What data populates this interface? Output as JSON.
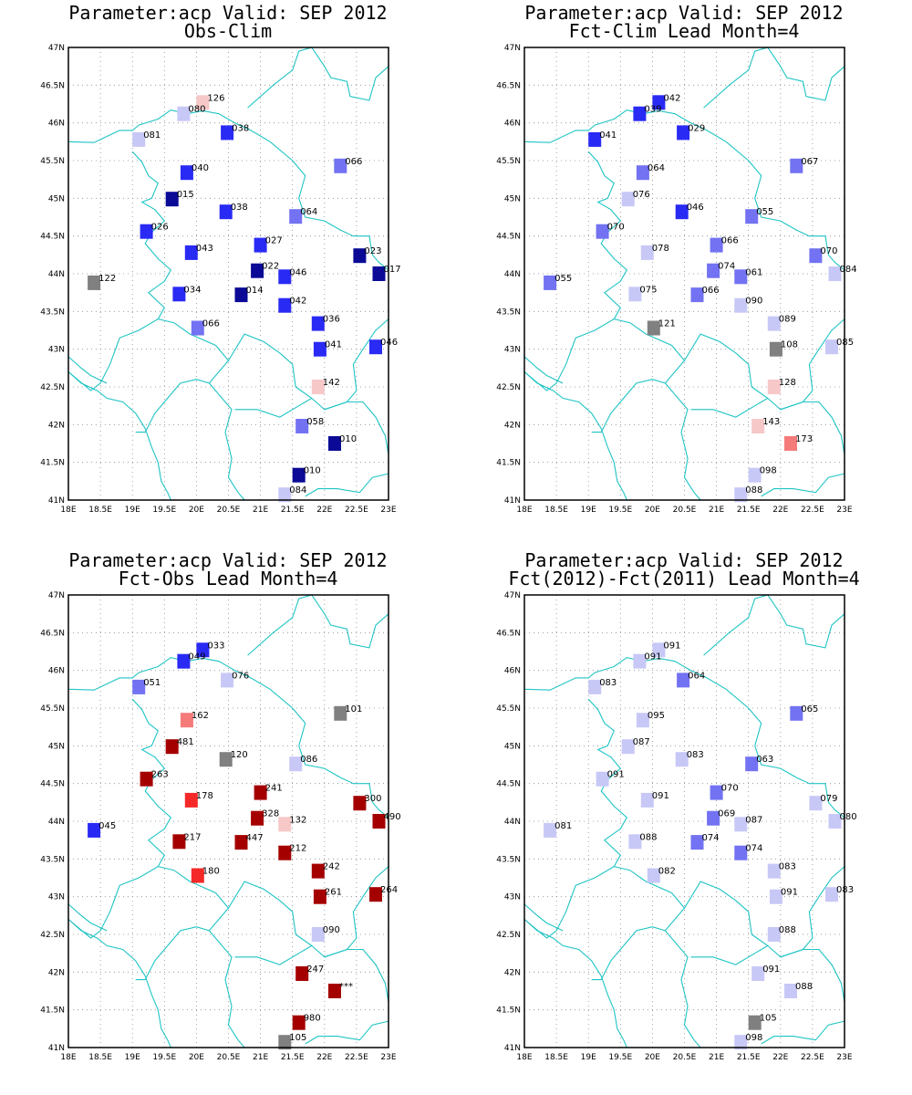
{
  "colors": {
    "border": "#1fc4c4",
    "bins": {
      "navy": "#0a0a96",
      "blue": "#2a2af5",
      "medblue": "#7272f2",
      "lightblue": "#c8c8f7",
      "gray": "#808080",
      "pink": "#f7c8c8",
      "salmon": "#f57a7a",
      "red": "#f52828",
      "darkred": "#a50000"
    }
  },
  "axes": {
    "lon": {
      "min": 18,
      "max": 23,
      "ticks": [
        18,
        18.5,
        19,
        19.5,
        20,
        20.5,
        21,
        21.5,
        22,
        22.5,
        23
      ],
      "labels": [
        "18E",
        "18.5E",
        "19E",
        "19.5E",
        "20E",
        "20.5E",
        "21E",
        "21.5E",
        "22E",
        "22.5E",
        "23E"
      ]
    },
    "lat": {
      "min": 41,
      "max": 47,
      "ticks": [
        41,
        41.5,
        42,
        42.5,
        43,
        43.5,
        44,
        44.5,
        45,
        45.5,
        46,
        46.5,
        47
      ],
      "labels": [
        "41N",
        "41.5N",
        "42N",
        "42.5N",
        "43N",
        "43.5N",
        "44N",
        "44.5N",
        "45N",
        "45.5N",
        "46N",
        "46.5N",
        "47N"
      ]
    }
  },
  "panels": [
    {
      "title1": "Parameter:acp Valid: SEP 2012",
      "title2": "Obs-Clim",
      "stations": [
        {
          "lon": 20.1,
          "lat": 46.27,
          "label": "126",
          "bin": "pink"
        },
        {
          "lon": 19.8,
          "lat": 46.12,
          "label": "080",
          "bin": "lightblue"
        },
        {
          "lon": 19.1,
          "lat": 45.78,
          "label": "081",
          "bin": "lightblue"
        },
        {
          "lon": 20.48,
          "lat": 45.87,
          "label": "038",
          "bin": "blue"
        },
        {
          "lon": 22.25,
          "lat": 45.43,
          "label": "066",
          "bin": "medblue"
        },
        {
          "lon": 19.85,
          "lat": 45.34,
          "label": "040",
          "bin": "blue"
        },
        {
          "lon": 19.62,
          "lat": 44.99,
          "label": "015",
          "bin": "navy"
        },
        {
          "lon": 20.46,
          "lat": 44.82,
          "label": "038",
          "bin": "blue"
        },
        {
          "lon": 21.55,
          "lat": 44.76,
          "label": "064",
          "bin": "medblue"
        },
        {
          "lon": 19.22,
          "lat": 44.56,
          "label": "026",
          "bin": "blue"
        },
        {
          "lon": 21.0,
          "lat": 44.38,
          "label": "027",
          "bin": "blue"
        },
        {
          "lon": 19.92,
          "lat": 44.28,
          "label": "043",
          "bin": "blue"
        },
        {
          "lon": 22.55,
          "lat": 44.24,
          "label": "023",
          "bin": "navy"
        },
        {
          "lon": 20.95,
          "lat": 44.04,
          "label": "022",
          "bin": "navy"
        },
        {
          "lon": 21.38,
          "lat": 43.96,
          "label": "046",
          "bin": "blue"
        },
        {
          "lon": 22.85,
          "lat": 44.0,
          "label": "017",
          "bin": "navy"
        },
        {
          "lon": 18.4,
          "lat": 43.88,
          "label": "122",
          "bin": "gray"
        },
        {
          "lon": 19.73,
          "lat": 43.73,
          "label": "034",
          "bin": "blue"
        },
        {
          "lon": 20.7,
          "lat": 43.72,
          "label": "014",
          "bin": "navy"
        },
        {
          "lon": 21.38,
          "lat": 43.58,
          "label": "042",
          "bin": "blue"
        },
        {
          "lon": 21.9,
          "lat": 43.34,
          "label": "036",
          "bin": "blue"
        },
        {
          "lon": 20.02,
          "lat": 43.28,
          "label": "066",
          "bin": "medblue"
        },
        {
          "lon": 21.93,
          "lat": 43.0,
          "label": "041",
          "bin": "blue"
        },
        {
          "lon": 22.8,
          "lat": 43.03,
          "label": "046",
          "bin": "blue"
        },
        {
          "lon": 21.9,
          "lat": 42.5,
          "label": "142",
          "bin": "pink"
        },
        {
          "lon": 21.65,
          "lat": 41.98,
          "label": "058",
          "bin": "medblue"
        },
        {
          "lon": 22.16,
          "lat": 41.75,
          "label": "010",
          "bin": "navy"
        },
        {
          "lon": 21.6,
          "lat": 41.33,
          "label": "010",
          "bin": "navy"
        },
        {
          "lon": 21.38,
          "lat": 41.07,
          "label": "084",
          "bin": "lightblue"
        }
      ]
    },
    {
      "title1": "Parameter:acp Valid: SEP 2012",
      "title2": "Fct-Clim Lead Month=4",
      "stations": [
        {
          "lon": 20.1,
          "lat": 46.27,
          "label": "042",
          "bin": "blue"
        },
        {
          "lon": 19.8,
          "lat": 46.12,
          "label": "039",
          "bin": "blue"
        },
        {
          "lon": 19.1,
          "lat": 45.78,
          "label": "041",
          "bin": "blue"
        },
        {
          "lon": 20.48,
          "lat": 45.87,
          "label": "029",
          "bin": "blue"
        },
        {
          "lon": 22.25,
          "lat": 45.43,
          "label": "067",
          "bin": "medblue"
        },
        {
          "lon": 19.85,
          "lat": 45.34,
          "label": "064",
          "bin": "medblue"
        },
        {
          "lon": 19.62,
          "lat": 44.99,
          "label": "076",
          "bin": "lightblue"
        },
        {
          "lon": 20.46,
          "lat": 44.82,
          "label": "046",
          "bin": "blue"
        },
        {
          "lon": 21.55,
          "lat": 44.76,
          "label": "055",
          "bin": "medblue"
        },
        {
          "lon": 19.22,
          "lat": 44.56,
          "label": "070",
          "bin": "medblue"
        },
        {
          "lon": 21.0,
          "lat": 44.38,
          "label": "066",
          "bin": "medblue"
        },
        {
          "lon": 19.92,
          "lat": 44.28,
          "label": "078",
          "bin": "lightblue"
        },
        {
          "lon": 22.55,
          "lat": 44.24,
          "label": "070",
          "bin": "medblue"
        },
        {
          "lon": 20.95,
          "lat": 44.04,
          "label": "074",
          "bin": "medblue"
        },
        {
          "lon": 21.38,
          "lat": 43.96,
          "label": "061",
          "bin": "medblue"
        },
        {
          "lon": 22.85,
          "lat": 44.0,
          "label": "084",
          "bin": "lightblue"
        },
        {
          "lon": 18.4,
          "lat": 43.88,
          "label": "055",
          "bin": "medblue"
        },
        {
          "lon": 19.73,
          "lat": 43.73,
          "label": "075",
          "bin": "lightblue"
        },
        {
          "lon": 20.7,
          "lat": 43.72,
          "label": "066",
          "bin": "medblue"
        },
        {
          "lon": 21.38,
          "lat": 43.58,
          "label": "090",
          "bin": "lightblue"
        },
        {
          "lon": 21.9,
          "lat": 43.34,
          "label": "089",
          "bin": "lightblue"
        },
        {
          "lon": 20.02,
          "lat": 43.28,
          "label": "121",
          "bin": "gray"
        },
        {
          "lon": 21.93,
          "lat": 43.0,
          "label": "108",
          "bin": "gray"
        },
        {
          "lon": 22.8,
          "lat": 43.03,
          "label": "085",
          "bin": "lightblue"
        },
        {
          "lon": 21.9,
          "lat": 42.5,
          "label": "128",
          "bin": "pink"
        },
        {
          "lon": 21.65,
          "lat": 41.98,
          "label": "143",
          "bin": "pink"
        },
        {
          "lon": 22.16,
          "lat": 41.75,
          "label": "173",
          "bin": "salmon"
        },
        {
          "lon": 21.6,
          "lat": 41.33,
          "label": "098",
          "bin": "lightblue"
        },
        {
          "lon": 21.38,
          "lat": 41.07,
          "label": "088",
          "bin": "lightblue"
        }
      ]
    },
    {
      "title1": "Parameter:acp Valid: SEP 2012",
      "title2": "Fct-Obs Lead Month=4",
      "stations": [
        {
          "lon": 20.1,
          "lat": 46.27,
          "label": "033",
          "bin": "blue"
        },
        {
          "lon": 19.8,
          "lat": 46.12,
          "label": "049",
          "bin": "blue"
        },
        {
          "lon": 19.1,
          "lat": 45.78,
          "label": "051",
          "bin": "medblue"
        },
        {
          "lon": 20.48,
          "lat": 45.87,
          "label": "076",
          "bin": "lightblue"
        },
        {
          "lon": 22.25,
          "lat": 45.43,
          "label": "101",
          "bin": "gray"
        },
        {
          "lon": 19.85,
          "lat": 45.34,
          "label": "162",
          "bin": "salmon"
        },
        {
          "lon": 19.62,
          "lat": 44.99,
          "label": "481",
          "bin": "darkred"
        },
        {
          "lon": 20.46,
          "lat": 44.82,
          "label": "120",
          "bin": "gray"
        },
        {
          "lon": 21.55,
          "lat": 44.76,
          "label": "086",
          "bin": "lightblue"
        },
        {
          "lon": 19.22,
          "lat": 44.56,
          "label": "263",
          "bin": "darkred"
        },
        {
          "lon": 21.0,
          "lat": 44.38,
          "label": "241",
          "bin": "darkred"
        },
        {
          "lon": 19.92,
          "lat": 44.28,
          "label": "178",
          "bin": "red"
        },
        {
          "lon": 22.55,
          "lat": 44.24,
          "label": "300",
          "bin": "darkred"
        },
        {
          "lon": 20.95,
          "lat": 44.04,
          "label": "328",
          "bin": "darkred"
        },
        {
          "lon": 21.38,
          "lat": 43.96,
          "label": "132",
          "bin": "pink"
        },
        {
          "lon": 22.85,
          "lat": 44.0,
          "label": "490",
          "bin": "darkred"
        },
        {
          "lon": 18.4,
          "lat": 43.88,
          "label": "045",
          "bin": "blue"
        },
        {
          "lon": 19.73,
          "lat": 43.73,
          "label": "217",
          "bin": "darkred"
        },
        {
          "lon": 20.7,
          "lat": 43.72,
          "label": "447",
          "bin": "darkred"
        },
        {
          "lon": 21.38,
          "lat": 43.58,
          "label": "212",
          "bin": "darkred"
        },
        {
          "lon": 21.9,
          "lat": 43.34,
          "label": "242",
          "bin": "darkred"
        },
        {
          "lon": 20.02,
          "lat": 43.28,
          "label": "180",
          "bin": "red"
        },
        {
          "lon": 21.93,
          "lat": 43.0,
          "label": "261",
          "bin": "darkred"
        },
        {
          "lon": 22.8,
          "lat": 43.03,
          "label": "264",
          "bin": "darkred"
        },
        {
          "lon": 21.9,
          "lat": 42.5,
          "label": "090",
          "bin": "lightblue"
        },
        {
          "lon": 21.65,
          "lat": 41.98,
          "label": "247",
          "bin": "darkred"
        },
        {
          "lon": 22.16,
          "lat": 41.75,
          "label": "***",
          "bin": "darkred"
        },
        {
          "lon": 21.6,
          "lat": 41.33,
          "label": "980",
          "bin": "darkred"
        },
        {
          "lon": 21.38,
          "lat": 41.07,
          "label": "105",
          "bin": "gray"
        }
      ]
    },
    {
      "title1": "Parameter:acp Valid: SEP 2012",
      "title2": "Fct(2012)-Fct(2011) Lead Month=4",
      "stations": [
        {
          "lon": 20.1,
          "lat": 46.27,
          "label": "091",
          "bin": "lightblue"
        },
        {
          "lon": 19.8,
          "lat": 46.12,
          "label": "091",
          "bin": "lightblue"
        },
        {
          "lon": 19.1,
          "lat": 45.78,
          "label": "083",
          "bin": "lightblue"
        },
        {
          "lon": 20.48,
          "lat": 45.87,
          "label": "064",
          "bin": "medblue"
        },
        {
          "lon": 22.25,
          "lat": 45.43,
          "label": "065",
          "bin": "medblue"
        },
        {
          "lon": 19.85,
          "lat": 45.34,
          "label": "095",
          "bin": "lightblue"
        },
        {
          "lon": 19.62,
          "lat": 44.99,
          "label": "087",
          "bin": "lightblue"
        },
        {
          "lon": 20.46,
          "lat": 44.82,
          "label": "083",
          "bin": "lightblue"
        },
        {
          "lon": 21.55,
          "lat": 44.76,
          "label": "063",
          "bin": "medblue"
        },
        {
          "lon": 19.22,
          "lat": 44.56,
          "label": "091",
          "bin": "lightblue"
        },
        {
          "lon": 21.0,
          "lat": 44.38,
          "label": "070",
          "bin": "medblue"
        },
        {
          "lon": 19.92,
          "lat": 44.28,
          "label": "091",
          "bin": "lightblue"
        },
        {
          "lon": 22.55,
          "lat": 44.24,
          "label": "079",
          "bin": "lightblue"
        },
        {
          "lon": 20.95,
          "lat": 44.04,
          "label": "069",
          "bin": "medblue"
        },
        {
          "lon": 21.38,
          "lat": 43.96,
          "label": "087",
          "bin": "lightblue"
        },
        {
          "lon": 22.85,
          "lat": 44.0,
          "label": "080",
          "bin": "lightblue"
        },
        {
          "lon": 18.4,
          "lat": 43.88,
          "label": "081",
          "bin": "lightblue"
        },
        {
          "lon": 19.73,
          "lat": 43.73,
          "label": "088",
          "bin": "lightblue"
        },
        {
          "lon": 20.7,
          "lat": 43.72,
          "label": "074",
          "bin": "medblue"
        },
        {
          "lon": 21.38,
          "lat": 43.58,
          "label": "074",
          "bin": "medblue"
        },
        {
          "lon": 21.9,
          "lat": 43.34,
          "label": "083",
          "bin": "lightblue"
        },
        {
          "lon": 20.02,
          "lat": 43.28,
          "label": "082",
          "bin": "lightblue"
        },
        {
          "lon": 21.93,
          "lat": 43.0,
          "label": "091",
          "bin": "lightblue"
        },
        {
          "lon": 22.8,
          "lat": 43.03,
          "label": "083",
          "bin": "lightblue"
        },
        {
          "lon": 21.9,
          "lat": 42.5,
          "label": "088",
          "bin": "lightblue"
        },
        {
          "lon": 21.65,
          "lat": 41.98,
          "label": "091",
          "bin": "lightblue"
        },
        {
          "lon": 22.16,
          "lat": 41.75,
          "label": "088",
          "bin": "lightblue"
        },
        {
          "lon": 21.6,
          "lat": 41.33,
          "label": "105",
          "bin": "gray"
        },
        {
          "lon": 21.38,
          "lat": 41.07,
          "label": "098",
          "bin": "lightblue"
        }
      ]
    }
  ]
}
